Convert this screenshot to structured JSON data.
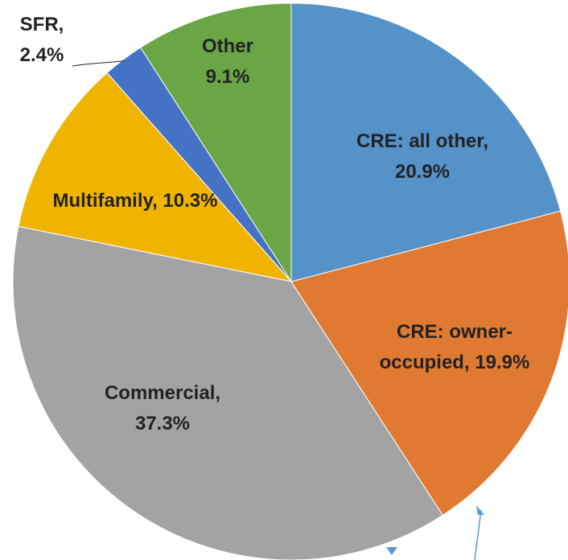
{
  "chart_data": {
    "type": "pie",
    "categories": [
      "CRE: all other,",
      "CRE: owner-occupied,",
      "Commercial,",
      "Multifamily,",
      "SFR,",
      "Other"
    ],
    "values": [
      20.9,
      19.9,
      37.3,
      10.3,
      2.4,
      9.1
    ],
    "value_labels": [
      "20.9%",
      "19.9%",
      "37.3%",
      "10.3%",
      "2.4%",
      "9.1%"
    ],
    "colors": [
      "#5592c8",
      "#e07a33",
      "#a3a3a3",
      "#f0b400",
      "#4472c4",
      "#6aa646"
    ]
  }
}
